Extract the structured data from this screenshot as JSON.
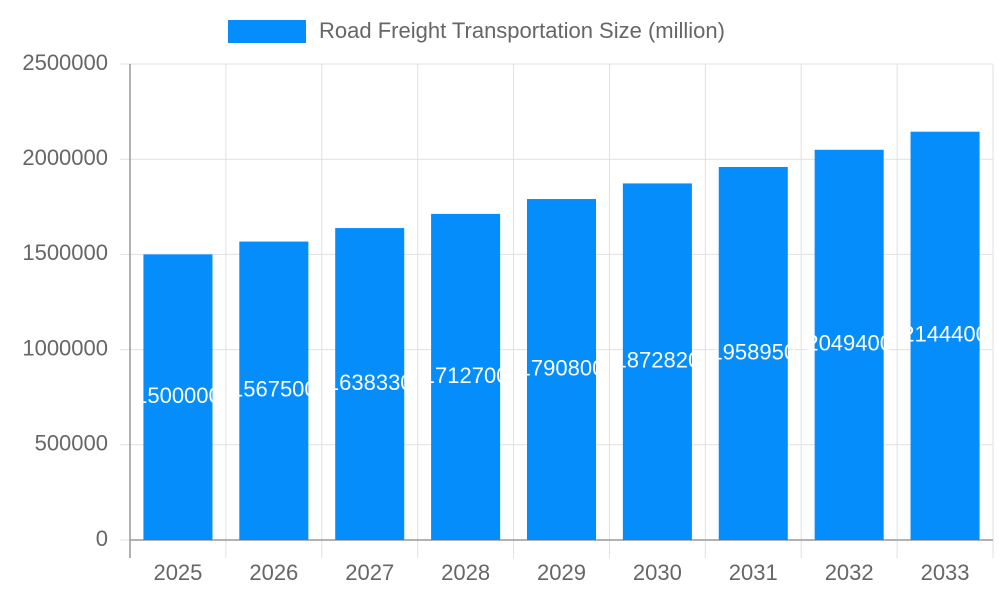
{
  "chart_data": {
    "type": "bar",
    "categories": [
      "2025",
      "2026",
      "2027",
      "2028",
      "2029",
      "2030",
      "2031",
      "2032",
      "2033"
    ],
    "series": [
      {
        "name": "Road Freight Transportation Size (million)",
        "color": "#058dfc",
        "values": [
          1500000,
          1567500,
          1638330,
          1712700,
          1790800,
          1872820,
          1958950,
          2049400,
          2144400
        ]
      }
    ],
    "ylim": [
      0,
      2500000
    ],
    "yticks": [
      0,
      500000,
      1000000,
      1500000,
      2000000,
      2500000
    ],
    "grid": true,
    "legend": "top"
  }
}
